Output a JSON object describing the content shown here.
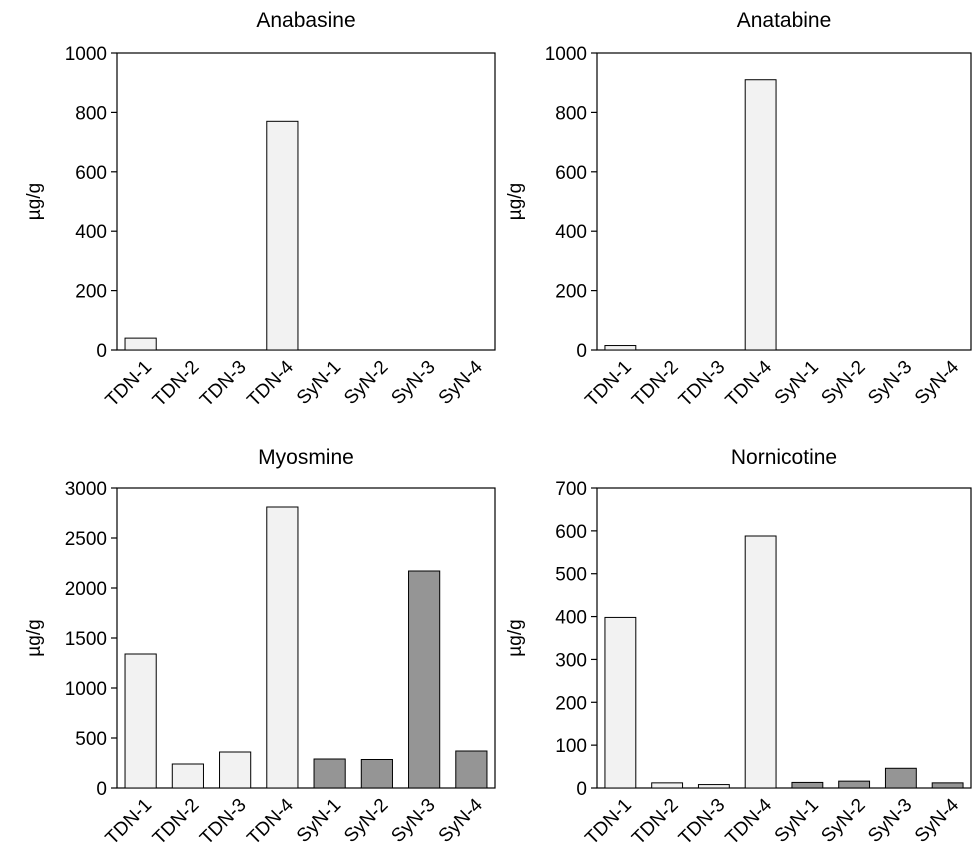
{
  "colors": {
    "tdn_fill": "#f2f2f2",
    "syn_fill": "#959595",
    "stroke": "#000000"
  },
  "chart_data": [
    {
      "type": "bar",
      "title": "Anabasine",
      "ylabel": "µg/g",
      "xlabel": "",
      "categories": [
        "TDN-1",
        "TDN-2",
        "TDN-3",
        "TDN-4",
        "SyN-1",
        "SyN-2",
        "SyN-3",
        "SyN-4"
      ],
      "values": [
        40,
        0,
        0,
        770,
        0,
        0,
        0,
        0
      ],
      "ylim": [
        0,
        1000
      ],
      "yticks": [
        "0",
        "200",
        "400",
        "600",
        "800",
        "1000"
      ],
      "grid": false,
      "legend": "none"
    },
    {
      "type": "bar",
      "title": "Anatabine",
      "ylabel": "µg/g",
      "xlabel": "",
      "categories": [
        "TDN-1",
        "TDN-2",
        "TDN-3",
        "TDN-4",
        "SyN-1",
        "SyN-2",
        "SyN-3",
        "SyN-4"
      ],
      "values": [
        15,
        0,
        0,
        910,
        0,
        0,
        0,
        0
      ],
      "ylim": [
        0,
        1000
      ],
      "yticks": [
        "0",
        "200",
        "400",
        "600",
        "800",
        "1000"
      ],
      "grid": false,
      "legend": "none"
    },
    {
      "type": "bar",
      "title": "Myosmine",
      "ylabel": "µg/g",
      "xlabel": "",
      "categories": [
        "TDN-1",
        "TDN-2",
        "TDN-3",
        "TDN-4",
        "SyN-1",
        "SyN-2",
        "SyN-3",
        "SyN-4"
      ],
      "values": [
        1340,
        240,
        360,
        2810,
        290,
        285,
        2170,
        370
      ],
      "ylim": [
        0,
        3000
      ],
      "yticks": [
        "0",
        "500",
        "1000",
        "1500",
        "2000",
        "2500",
        "3000"
      ],
      "grid": false,
      "legend": "none"
    },
    {
      "type": "bar",
      "title": "Nornicotine",
      "ylabel": "µg/g",
      "xlabel": "",
      "categories": [
        "TDN-1",
        "TDN-2",
        "TDN-3",
        "TDN-4",
        "SyN-1",
        "SyN-2",
        "SyN-3",
        "SyN-4"
      ],
      "values": [
        398,
        12,
        8,
        588,
        13,
        16,
        46,
        12
      ],
      "ylim": [
        0,
        700
      ],
      "yticks": [
        "0",
        "100",
        "200",
        "300",
        "400",
        "500",
        "600",
        "700"
      ],
      "grid": false,
      "legend": "none"
    }
  ]
}
